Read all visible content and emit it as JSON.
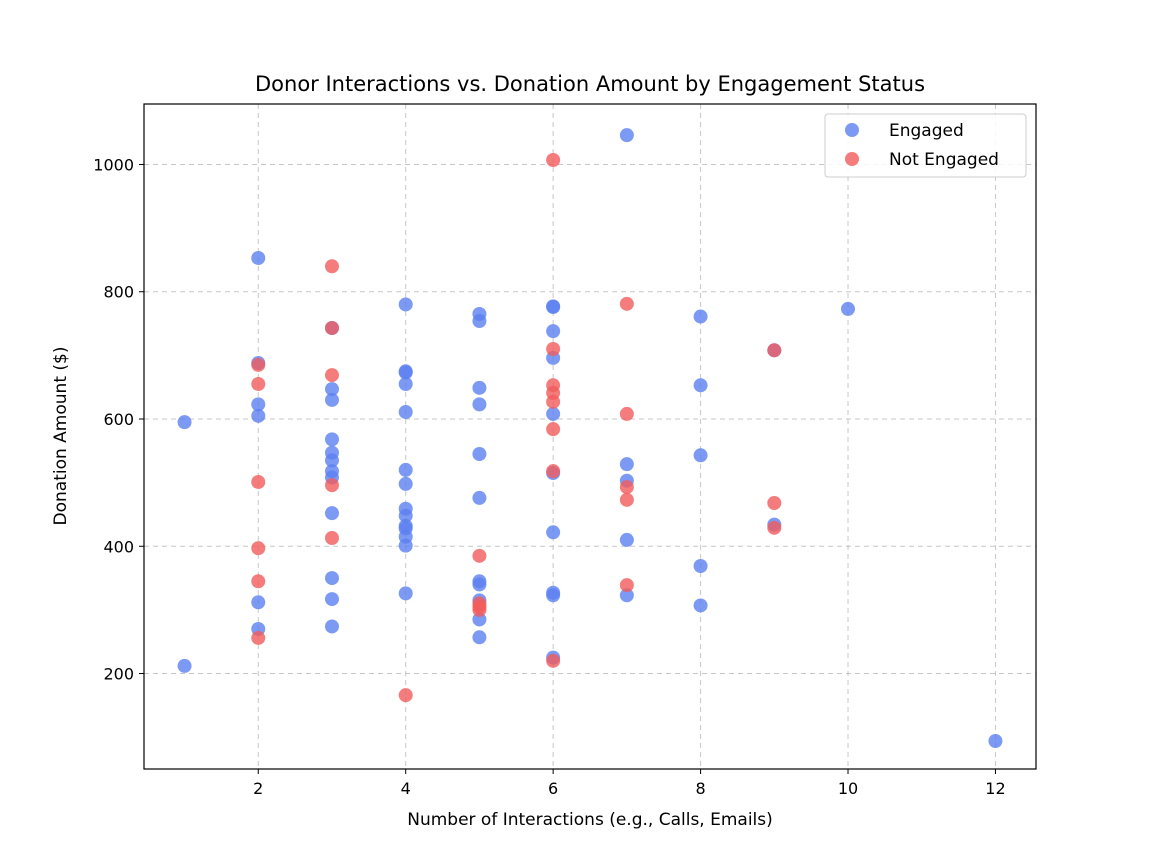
{
  "chart_data": {
    "type": "scatter",
    "title": "Donor Interactions vs. Donation Amount by Engagement Status",
    "xlabel": "Number of Interactions (e.g., Calls, Emails)",
    "ylabel": "Donation Amount ($)",
    "xlim": [
      0.45,
      12.55
    ],
    "ylim": [
      50,
      1095
    ],
    "xticks": [
      2,
      4,
      6,
      8,
      10,
      12
    ],
    "yticks": [
      200,
      400,
      600,
      800,
      1000
    ],
    "grid": true,
    "legend_position": "top-right",
    "series": [
      {
        "name": "Engaged",
        "color": "#5b7ff0",
        "points": [
          [
            1,
            595
          ],
          [
            1,
            212
          ],
          [
            2,
            853
          ],
          [
            2,
            688
          ],
          [
            2,
            623
          ],
          [
            2,
            605
          ],
          [
            2,
            312
          ],
          [
            2,
            270
          ],
          [
            3,
            743
          ],
          [
            3,
            647
          ],
          [
            3,
            630
          ],
          [
            3,
            568
          ],
          [
            3,
            547
          ],
          [
            3,
            535
          ],
          [
            3,
            518
          ],
          [
            3,
            508
          ],
          [
            3,
            452
          ],
          [
            3,
            350
          ],
          [
            3,
            317
          ],
          [
            3,
            274
          ],
          [
            4,
            780
          ],
          [
            4,
            675
          ],
          [
            4,
            673
          ],
          [
            4,
            655
          ],
          [
            4,
            611
          ],
          [
            4,
            520
          ],
          [
            4,
            498
          ],
          [
            4,
            459
          ],
          [
            4,
            448
          ],
          [
            4,
            432
          ],
          [
            4,
            428
          ],
          [
            4,
            415
          ],
          [
            4,
            401
          ],
          [
            4,
            326
          ],
          [
            5,
            765
          ],
          [
            5,
            754
          ],
          [
            5,
            649
          ],
          [
            5,
            623
          ],
          [
            5,
            545
          ],
          [
            5,
            476
          ],
          [
            5,
            345
          ],
          [
            5,
            340
          ],
          [
            5,
            315
          ],
          [
            5,
            285
          ],
          [
            5,
            257
          ],
          [
            6,
            777
          ],
          [
            6,
            776
          ],
          [
            6,
            738
          ],
          [
            6,
            696
          ],
          [
            6,
            608
          ],
          [
            6,
            515
          ],
          [
            6,
            422
          ],
          [
            6,
            327
          ],
          [
            6,
            323
          ],
          [
            6,
            225
          ],
          [
            7,
            1046
          ],
          [
            7,
            529
          ],
          [
            7,
            503
          ],
          [
            7,
            410
          ],
          [
            7,
            323
          ],
          [
            8,
            761
          ],
          [
            8,
            653
          ],
          [
            8,
            543
          ],
          [
            8,
            369
          ],
          [
            8,
            307
          ],
          [
            9,
            708
          ],
          [
            9,
            434
          ],
          [
            10,
            773
          ],
          [
            12,
            94
          ]
        ]
      },
      {
        "name": "Not Engaged",
        "color": "#f25b5b",
        "points": [
          [
            2,
            685
          ],
          [
            2,
            655
          ],
          [
            2,
            501
          ],
          [
            2,
            397
          ],
          [
            2,
            345
          ],
          [
            2,
            256
          ],
          [
            3,
            840
          ],
          [
            3,
            743
          ],
          [
            3,
            669
          ],
          [
            3,
            496
          ],
          [
            3,
            413
          ],
          [
            4,
            166
          ],
          [
            5,
            385
          ],
          [
            5,
            310
          ],
          [
            5,
            305
          ],
          [
            5,
            300
          ],
          [
            6,
            1007
          ],
          [
            6,
            710
          ],
          [
            6,
            653
          ],
          [
            6,
            641
          ],
          [
            6,
            627
          ],
          [
            6,
            584
          ],
          [
            6,
            518
          ],
          [
            6,
            220
          ],
          [
            7,
            781
          ],
          [
            7,
            608
          ],
          [
            7,
            493
          ],
          [
            7,
            473
          ],
          [
            7,
            339
          ],
          [
            9,
            708
          ],
          [
            9,
            468
          ],
          [
            9,
            429
          ]
        ]
      }
    ]
  }
}
